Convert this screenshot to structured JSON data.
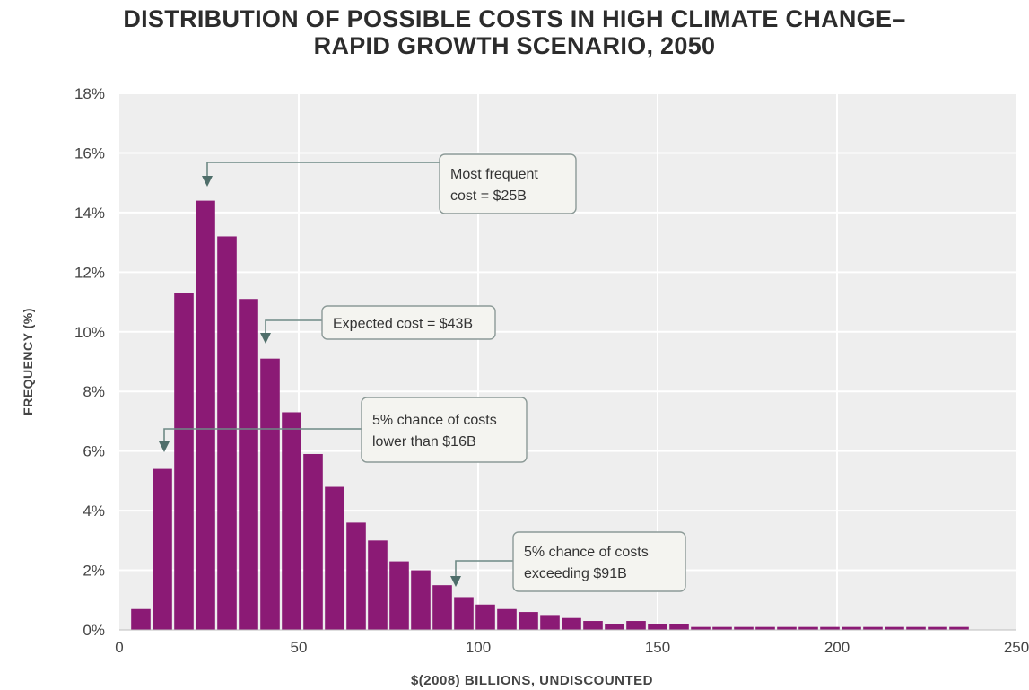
{
  "chart_data": {
    "type": "bar",
    "title_lines": [
      "DISTRIBUTION OF POSSIBLE COSTS IN HIGH CLIMATE CHANGE–",
      "RAPID GROWTH SCENARIO, 2050"
    ],
    "xlabel": "$(2008) BILLIONS, UNDISCOUNTED",
    "ylabel": "FREQUENCY (%)",
    "xlim": [
      0,
      250
    ],
    "ylim": [
      0,
      18
    ],
    "x_ticks": [
      0,
      50,
      100,
      150,
      200,
      250
    ],
    "x_tick_labels": [
      "0",
      "50",
      "100",
      "150",
      "200",
      "250"
    ],
    "y_ticks": [
      0,
      2,
      4,
      6,
      8,
      10,
      12,
      14,
      16,
      18
    ],
    "y_tick_labels": [
      "0%",
      "2%",
      "4%",
      "6%",
      "8%",
      "10%",
      "12%",
      "14%",
      "16%",
      "18%"
    ],
    "grid": true,
    "bin_width": 6,
    "x": [
      6,
      12,
      18,
      24,
      30,
      36,
      42,
      48,
      54,
      60,
      66,
      72,
      78,
      84,
      90,
      96,
      102,
      108,
      114,
      120,
      126,
      132,
      138,
      144,
      150,
      156,
      162,
      168,
      174,
      180,
      186,
      192,
      198,
      204,
      210,
      216,
      222,
      228,
      234
    ],
    "values": [
      0.7,
      5.4,
      11.3,
      14.4,
      13.2,
      11.1,
      9.1,
      7.3,
      5.9,
      4.8,
      3.6,
      3.0,
      2.3,
      2.0,
      1.5,
      1.1,
      0.85,
      0.7,
      0.6,
      0.5,
      0.4,
      0.3,
      0.2,
      0.3,
      0.2,
      0.2,
      0.1,
      0.1,
      0.1,
      0.1,
      0.1,
      0.1,
      0.1,
      0.1,
      0.1,
      0.1,
      0.1,
      0.1,
      0.1
    ],
    "bar_color": "#8b1a75",
    "annotations": [
      {
        "lines": [
          "Most frequent",
          "cost = $25B"
        ],
        "x": 25,
        "y": 14.4
      },
      {
        "lines": [
          "Expected cost = $43B"
        ],
        "x": 43,
        "y": 9.1
      },
      {
        "lines": [
          "5% chance of costs",
          "lower than $16B"
        ],
        "x": 16,
        "y": 5.4
      },
      {
        "lines": [
          "5% chance of costs",
          "exceeding $91B"
        ],
        "x": 91,
        "y": 1.2
      }
    ]
  }
}
